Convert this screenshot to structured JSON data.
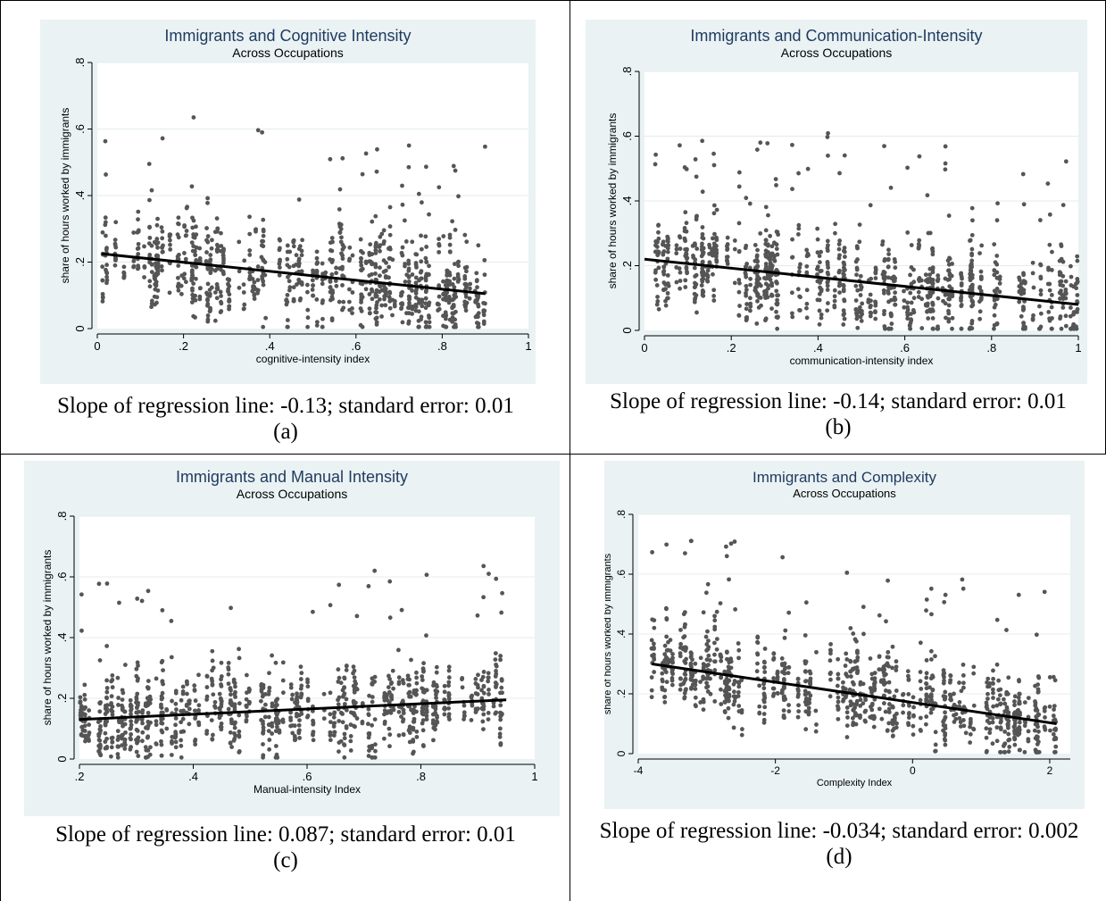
{
  "chart_data": [
    {
      "type": "scatter",
      "title": "Immigrants and Cognitive Intensity",
      "subtitle": "Across Occupations",
      "xlabel": "cognitive-intensity index",
      "ylabel": "share of hours worked by immigrants",
      "xlim": [
        0,
        1
      ],
      "ylim": [
        0,
        0.8
      ],
      "xticks": [
        {
          "v": 0,
          "label": "0"
        },
        {
          "v": 0.2,
          "label": ".2"
        },
        {
          "v": 0.4,
          "label": ".4"
        },
        {
          "v": 0.6,
          "label": ".6"
        },
        {
          "v": 0.8,
          "label": ".8"
        },
        {
          "v": 1,
          "label": "1"
        }
      ],
      "yticks": [
        {
          "v": 0,
          "label": "0"
        },
        {
          "v": 0.2,
          "label": ".2"
        },
        {
          "v": 0.4,
          "label": ".4"
        },
        {
          "v": 0.6,
          "label": ".6"
        },
        {
          "v": 0.8,
          "label": ".8"
        }
      ],
      "grid": true,
      "x_data_range": [
        0.01,
        0.9
      ],
      "regression_line": {
        "x": [
          0.01,
          0.9
        ],
        "y": [
          0.225,
          0.105
        ]
      },
      "point_color": "#555555",
      "line_color": "#000000",
      "background_color": "#eaf2f3",
      "caption": "Slope of regression line: -0.13; standard error: 0.01",
      "label": "(a)"
    },
    {
      "type": "scatter",
      "title": "Immigrants and Communication-Intensity",
      "subtitle": "Across Occupations",
      "xlabel": "communication-intensity index",
      "ylabel": "share of hours worked by immigrants",
      "xlim": [
        0,
        1
      ],
      "ylim": [
        0,
        0.8
      ],
      "xticks": [
        {
          "v": 0,
          "label": "0"
        },
        {
          "v": 0.2,
          "label": ".2"
        },
        {
          "v": 0.4,
          "label": ".4"
        },
        {
          "v": 0.6,
          "label": ".6"
        },
        {
          "v": 0.8,
          "label": ".8"
        },
        {
          "v": 1,
          "label": "1"
        }
      ],
      "yticks": [
        {
          "v": 0,
          "label": "0"
        },
        {
          "v": 0.2,
          "label": ".2"
        },
        {
          "v": 0.4,
          "label": ".4"
        },
        {
          "v": 0.6,
          "label": ".6"
        },
        {
          "v": 0.8,
          "label": ".8"
        }
      ],
      "grid": true,
      "x_data_range": [
        0,
        1
      ],
      "regression_line": {
        "x": [
          0,
          1
        ],
        "y": [
          0.22,
          0.08
        ]
      },
      "point_color": "#555555",
      "line_color": "#000000",
      "background_color": "#eaf2f3",
      "caption": "Slope of regression line: -0.14; standard error: 0.01",
      "label": "(b)"
    },
    {
      "type": "scatter",
      "title": "Immigrants and Manual Intensity",
      "subtitle": "Across Occupations",
      "xlabel": "Manual-intensity Index",
      "ylabel": "share of hours worked by immigrants",
      "xlim": [
        0.2,
        1
      ],
      "ylim": [
        0,
        0.8
      ],
      "xticks": [
        {
          "v": 0.2,
          "label": ".2"
        },
        {
          "v": 0.4,
          "label": ".4"
        },
        {
          "v": 0.6,
          "label": ".6"
        },
        {
          "v": 0.8,
          "label": ".8"
        },
        {
          "v": 1,
          "label": "1"
        }
      ],
      "yticks": [
        {
          "v": 0,
          "label": "0"
        },
        {
          "v": 0.2,
          "label": ".2"
        },
        {
          "v": 0.4,
          "label": ".4"
        },
        {
          "v": 0.6,
          "label": ".6"
        },
        {
          "v": 0.8,
          "label": ".8"
        }
      ],
      "grid": true,
      "x_data_range": [
        0.2,
        0.95
      ],
      "regression_line": {
        "x": [
          0.2,
          0.95
        ],
        "y": [
          0.13,
          0.195
        ]
      },
      "point_color": "#555555",
      "line_color": "#000000",
      "background_color": "#eaf2f3",
      "caption": "Slope of regression line: 0.087; standard error: 0.01",
      "label": "(c)"
    },
    {
      "type": "scatter",
      "title": "Immigrants and Complexity",
      "subtitle": "Across Occupations",
      "xlabel": "Complexity Index",
      "ylabel": "share of hours worked by immigrants",
      "xlim": [
        -4,
        2.3
      ],
      "ylim": [
        0,
        0.8
      ],
      "xticks": [
        {
          "v": -4,
          "label": "-4"
        },
        {
          "v": -2,
          "label": "-2"
        },
        {
          "v": 0,
          "label": "0"
        },
        {
          "v": 2,
          "label": "2"
        }
      ],
      "yticks": [
        {
          "v": 0,
          "label": "0"
        },
        {
          "v": 0.2,
          "label": ".2"
        },
        {
          "v": 0.4,
          "label": ".4"
        },
        {
          "v": 0.6,
          "label": ".6"
        },
        {
          "v": 0.8,
          "label": ".8"
        }
      ],
      "grid": true,
      "x_data_range": [
        -3.8,
        2.1
      ],
      "regression_line": {
        "x": [
          -3.8,
          2.1
        ],
        "y": [
          0.3,
          0.1
        ]
      },
      "point_color": "#555555",
      "line_color": "#000000",
      "background_color": "#eaf2f3",
      "caption": "Slope of regression line: -0.034; standard error: 0.002",
      "label": "(d)"
    }
  ]
}
